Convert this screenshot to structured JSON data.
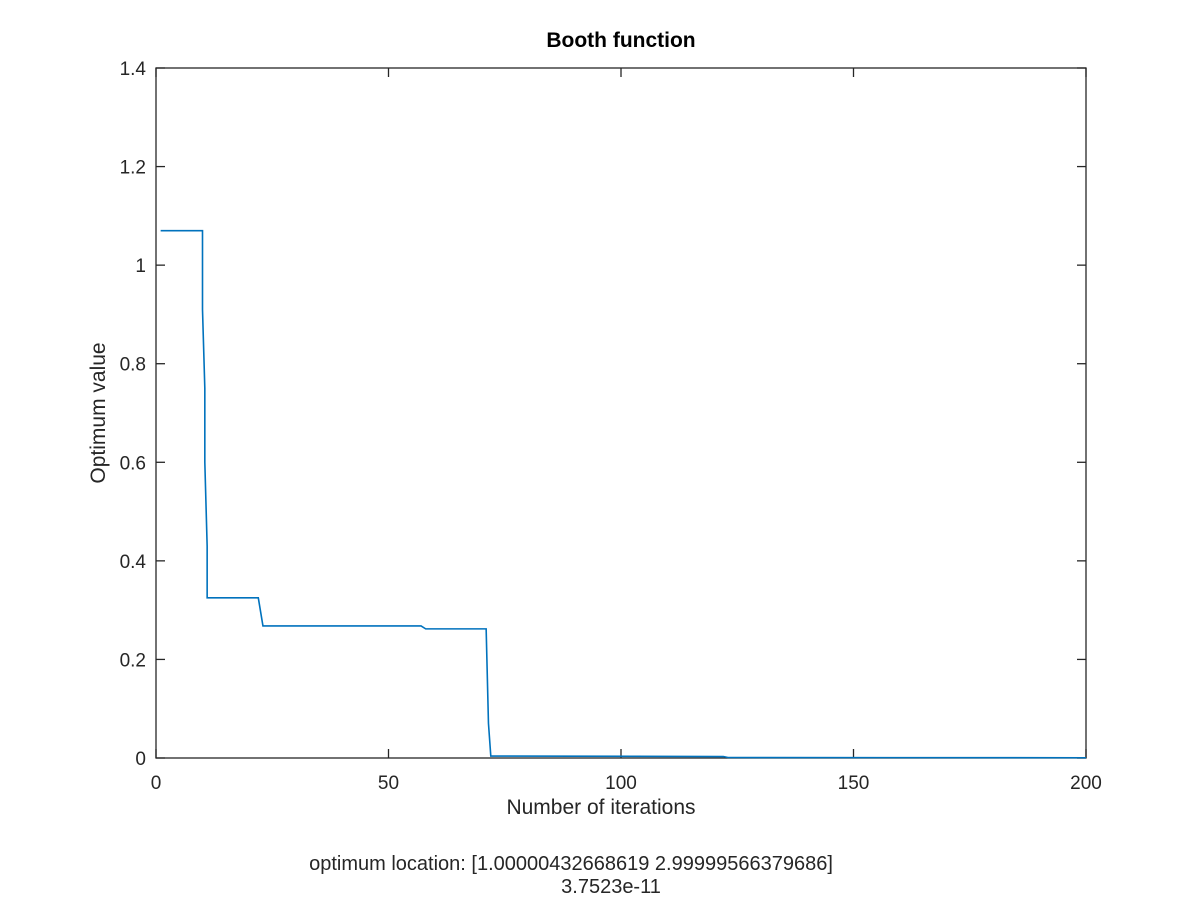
{
  "chart_data": {
    "type": "line",
    "title": "Booth function",
    "xlabel": "Number of iterations",
    "ylabel": "Optimum value",
    "xlim": [
      0,
      200
    ],
    "ylim": [
      0,
      1.4
    ],
    "xticks": [
      0,
      50,
      100,
      150,
      200
    ],
    "xtick_labels": [
      "0",
      "50",
      "100",
      "150",
      "200"
    ],
    "yticks": [
      0,
      0.2,
      0.4,
      0.6,
      0.8,
      1,
      1.2,
      1.4
    ],
    "ytick_labels": [
      "0",
      "0.2",
      "0.4",
      "0.6",
      "0.8",
      "1",
      "1.2",
      "1.4"
    ],
    "grid": false,
    "series": [
      {
        "color": "#0072bd",
        "x": [
          1,
          10,
          10,
          10.5,
          10.5,
          11,
          11,
          22,
          23,
          57,
          58,
          71,
          71.5,
          72,
          122,
          123,
          200
        ],
        "y": [
          1.07,
          1.07,
          0.91,
          0.75,
          0.6,
          0.43,
          0.325,
          0.325,
          0.268,
          0.268,
          0.262,
          0.262,
          0.07,
          0.004,
          0.003,
          0.001,
          0.0005
        ]
      }
    ],
    "annotations": [
      "optimum location: [1.00000432668619 2.99999566379686]",
      "3.7523e-11"
    ]
  }
}
